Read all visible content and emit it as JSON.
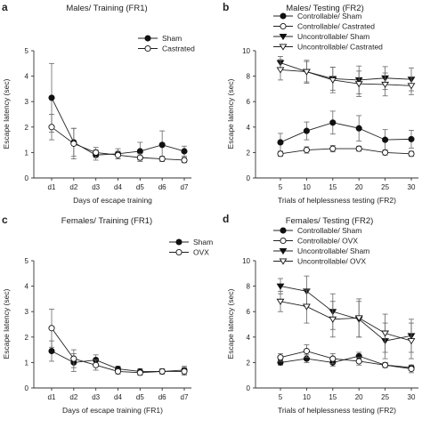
{
  "chart_data": [
    {
      "panel": "a",
      "type": "line",
      "title": "Males/ Training (FR1)",
      "xlabel": "Days of escape training",
      "ylabel": "Escape latency (sec)",
      "categories": [
        "d1",
        "d2",
        "d3",
        "d4",
        "d5",
        "d6",
        "d7"
      ],
      "ylim": [
        0,
        5
      ],
      "yticks": [
        0,
        1,
        2,
        3,
        4,
        5
      ],
      "legend_position": "top-right",
      "series": [
        {
          "name": "Sham",
          "marker": "filled-circle",
          "values": [
            3.15,
            1.4,
            0.9,
            0.95,
            1.05,
            1.3,
            1.05
          ],
          "errors": [
            1.35,
            0.55,
            0.2,
            0.2,
            0.35,
            0.55,
            0.2
          ]
        },
        {
          "name": "Castrated",
          "marker": "open-circle",
          "values": [
            2.0,
            1.35,
            1.0,
            0.9,
            0.8,
            0.75,
            0.7
          ],
          "errors": [
            0.5,
            0.6,
            0.2,
            0.15,
            0.15,
            0.1,
            0.1
          ]
        }
      ]
    },
    {
      "panel": "b",
      "type": "line",
      "title": "Males/ Testing (FR2)",
      "xlabel": "Trials of helplessness testing (FR2)",
      "ylabel": "Escape latency (sec)",
      "categories": [
        "5",
        "10",
        "15",
        "20",
        "25",
        "30"
      ],
      "ylim": [
        0,
        10
      ],
      "yticks": [
        0,
        2,
        4,
        6,
        8,
        10
      ],
      "legend_position": "top-right",
      "series": [
        {
          "name": "Controllable/ Sham",
          "marker": "filled-circle",
          "values": [
            2.8,
            3.7,
            4.35,
            3.9,
            3.0,
            3.05
          ],
          "errors": [
            0.7,
            0.7,
            0.9,
            1.0,
            0.8,
            0.7
          ]
        },
        {
          "name": "Controllable/ Castrated",
          "marker": "open-circle",
          "values": [
            1.9,
            2.2,
            2.3,
            2.3,
            2.0,
            1.9
          ],
          "errors": [
            0.2,
            0.25,
            0.25,
            0.2,
            0.2,
            0.2
          ]
        },
        {
          "name": "Uncontrollable/ Sham",
          "marker": "filled-triangle-down",
          "values": [
            9.05,
            8.35,
            7.8,
            7.7,
            7.85,
            7.75
          ],
          "errors": [
            0.5,
            0.8,
            0.9,
            1.1,
            0.9,
            0.9
          ]
        },
        {
          "name": "Uncontrollable/ Castrated",
          "marker": "open-triangle-down",
          "values": [
            8.5,
            8.35,
            7.7,
            7.4,
            7.35,
            7.25
          ],
          "errors": [
            0.8,
            0.9,
            1.0,
            1.0,
            0.9,
            0.7
          ]
        }
      ]
    },
    {
      "panel": "c",
      "type": "line",
      "title": "Females/ Training (FR1)",
      "xlabel": "Days of escape training (FR1)",
      "ylabel": "Escape latency (sec)",
      "categories": [
        "d1",
        "d2",
        "d3",
        "d4",
        "d5",
        "d6",
        "d7"
      ],
      "ylim": [
        0,
        5
      ],
      "yticks": [
        0,
        1,
        2,
        3,
        4,
        5
      ],
      "legend_position": "top-right",
      "series": [
        {
          "name": "Sham",
          "marker": "filled-circle",
          "values": [
            1.45,
            1.0,
            1.1,
            0.75,
            0.65,
            0.65,
            0.7
          ],
          "errors": [
            0.4,
            0.35,
            0.2,
            0.1,
            0.1,
            0.1,
            0.15
          ]
        },
        {
          "name": "OVX",
          "marker": "open-circle",
          "values": [
            2.35,
            1.15,
            0.9,
            0.65,
            0.6,
            0.65,
            0.65
          ],
          "errors": [
            0.75,
            0.35,
            0.2,
            0.1,
            0.1,
            0.1,
            0.15
          ]
        }
      ]
    },
    {
      "panel": "d",
      "type": "line",
      "title": "Females/ Testing (FR2)",
      "xlabel": "Trials of helplessness testing (FR2)",
      "ylabel": "Escape latency (sec)",
      "categories": [
        "5",
        "10",
        "15",
        "20",
        "25",
        "30"
      ],
      "ylim": [
        0,
        10
      ],
      "yticks": [
        0,
        2,
        4,
        6,
        8,
        10
      ],
      "legend_position": "top-right",
      "series": [
        {
          "name": "Controllable/ Sham",
          "marker": "filled-circle",
          "values": [
            2.0,
            2.3,
            2.0,
            2.5,
            1.8,
            1.6
          ],
          "errors": [
            0.2,
            0.3,
            0.3,
            0.3,
            0.2,
            0.2
          ]
        },
        {
          "name": "Controllable/ OVX",
          "marker": "open-circle",
          "values": [
            2.4,
            2.9,
            2.3,
            2.1,
            1.8,
            1.5
          ],
          "errors": [
            0.3,
            0.5,
            0.4,
            0.3,
            0.2,
            0.3
          ]
        },
        {
          "name": "Uncontrollable/ Sham",
          "marker": "filled-triangle-down",
          "values": [
            8.0,
            7.6,
            6.0,
            5.4,
            3.7,
            4.1
          ],
          "errors": [
            0.6,
            1.2,
            1.4,
            1.4,
            1.4,
            1.3
          ]
        },
        {
          "name": "Uncontrollable/ OVX",
          "marker": "open-triangle-down",
          "values": [
            6.8,
            6.4,
            5.4,
            5.5,
            4.3,
            3.7
          ],
          "errors": [
            0.8,
            1.3,
            1.4,
            1.5,
            1.5,
            1.4
          ]
        }
      ]
    }
  ]
}
